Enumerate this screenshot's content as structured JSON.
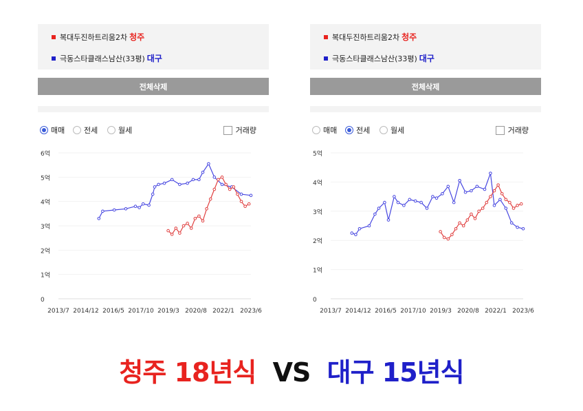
{
  "panels": [
    {
      "legend": [
        {
          "label": "복대두진하트리움2차",
          "city": "청주",
          "color": "#e8231f"
        },
        {
          "label": "극동스타클래스남산(33평)",
          "city": "대구",
          "color": "#1f20c9"
        }
      ],
      "delete_label": "전체삭제",
      "radios": [
        {
          "label": "매매",
          "selected": true
        },
        {
          "label": "전세",
          "selected": false
        },
        {
          "label": "월세",
          "selected": false
        }
      ],
      "checkbox_label": "거래량",
      "checkbox_checked": false
    },
    {
      "legend": [
        {
          "label": "복대두진하트리움2차",
          "city": "청주",
          "color": "#e8231f"
        },
        {
          "label": "극동스타클래스남산(33평)",
          "city": "대구",
          "color": "#1f20c9"
        }
      ],
      "delete_label": "전체삭제",
      "radios": [
        {
          "label": "매매",
          "selected": false
        },
        {
          "label": "전세",
          "selected": true
        },
        {
          "label": "월세",
          "selected": false
        }
      ],
      "checkbox_label": "거래량",
      "checkbox_checked": false
    }
  ],
  "chart_data": [
    {
      "type": "line",
      "y_ticks": [
        "0",
        "1억",
        "2억",
        "3억",
        "4억",
        "5억",
        "6억"
      ],
      "ylim": [
        0,
        6
      ],
      "x_ticks": [
        "2013/7",
        "2014/12",
        "2016/5",
        "2017/10",
        "2019/3",
        "2020/8",
        "2022/1",
        "2023/6"
      ],
      "xlim": [
        2013.5,
        2023.5
      ],
      "series": [
        {
          "name": "대구",
          "color": "#4646e0",
          "x": [
            2015.6,
            2015.8,
            2016.4,
            2017.0,
            2017.5,
            2017.7,
            2017.9,
            2018.2,
            2018.4,
            2018.5,
            2018.7,
            2019.0,
            2019.4,
            2019.8,
            2020.2,
            2020.5,
            2020.8,
            2021.0,
            2021.3,
            2021.6,
            2022.0,
            2022.5,
            2023.0,
            2023.5
          ],
          "y": [
            3.3,
            3.6,
            3.65,
            3.7,
            3.8,
            3.75,
            3.9,
            3.85,
            4.3,
            4.6,
            4.7,
            4.75,
            4.9,
            4.7,
            4.75,
            4.9,
            4.9,
            5.2,
            5.55,
            5.0,
            4.7,
            4.6,
            4.3,
            4.25
          ]
        },
        {
          "name": "청주",
          "color": "#e04040",
          "x": [
            2019.2,
            2019.4,
            2019.6,
            2019.8,
            2020.0,
            2020.2,
            2020.4,
            2020.6,
            2020.8,
            2021.0,
            2021.2,
            2021.4,
            2021.6,
            2021.8,
            2022.0,
            2022.2,
            2022.4,
            2022.6,
            2022.8,
            2023.0,
            2023.2,
            2023.4
          ],
          "y": [
            2.8,
            2.65,
            2.9,
            2.7,
            3.0,
            3.1,
            2.9,
            3.3,
            3.4,
            3.2,
            3.7,
            4.1,
            4.5,
            4.9,
            5.0,
            4.7,
            4.5,
            4.6,
            4.3,
            4.0,
            3.8,
            3.9
          ]
        }
      ]
    },
    {
      "type": "line",
      "y_ticks": [
        "0",
        "1억",
        "2억",
        "3억",
        "4억",
        "5억"
      ],
      "ylim": [
        0,
        5
      ],
      "x_ticks": [
        "2013/7",
        "2014/12",
        "2016/5",
        "2017/10",
        "2019/3",
        "2020/8",
        "2022/1",
        "2023/6"
      ],
      "xlim": [
        2013.5,
        2023.5
      ],
      "series": [
        {
          "name": "대구",
          "color": "#4646e0",
          "x": [
            2014.6,
            2014.8,
            2015.0,
            2015.5,
            2015.8,
            2016.0,
            2016.3,
            2016.5,
            2016.8,
            2017.0,
            2017.3,
            2017.6,
            2017.9,
            2018.2,
            2018.5,
            2018.8,
            2019.0,
            2019.3,
            2019.6,
            2019.9,
            2020.2,
            2020.5,
            2020.8,
            2021.1,
            2021.5,
            2021.8,
            2022.0,
            2022.3,
            2022.6,
            2022.9,
            2023.2,
            2023.5
          ],
          "y": [
            2.25,
            2.2,
            2.4,
            2.5,
            2.9,
            3.1,
            3.3,
            2.7,
            3.5,
            3.3,
            3.2,
            3.4,
            3.35,
            3.3,
            3.1,
            3.5,
            3.45,
            3.6,
            3.85,
            3.3,
            4.05,
            3.65,
            3.7,
            3.85,
            3.75,
            4.3,
            3.2,
            3.4,
            3.1,
            2.6,
            2.45,
            2.4
          ]
        },
        {
          "name": "청주",
          "color": "#e04040",
          "x": [
            2019.2,
            2019.4,
            2019.6,
            2019.8,
            2020.0,
            2020.2,
            2020.4,
            2020.6,
            2020.8,
            2021.0,
            2021.2,
            2021.4,
            2021.6,
            2021.8,
            2022.0,
            2022.2,
            2022.4,
            2022.6,
            2022.8,
            2023.0,
            2023.2,
            2023.4
          ],
          "y": [
            2.3,
            2.1,
            2.05,
            2.2,
            2.4,
            2.6,
            2.5,
            2.7,
            2.9,
            2.75,
            3.0,
            3.1,
            3.3,
            3.5,
            3.7,
            3.9,
            3.6,
            3.4,
            3.3,
            3.1,
            3.2,
            3.25
          ]
        }
      ]
    }
  ],
  "title": {
    "part1": "청주 18년식",
    "part1_color": "#e8231f",
    "part2": "VS",
    "part2_color": "#111111",
    "part3": "대구 15년식",
    "part3_color": "#1f20c9"
  }
}
